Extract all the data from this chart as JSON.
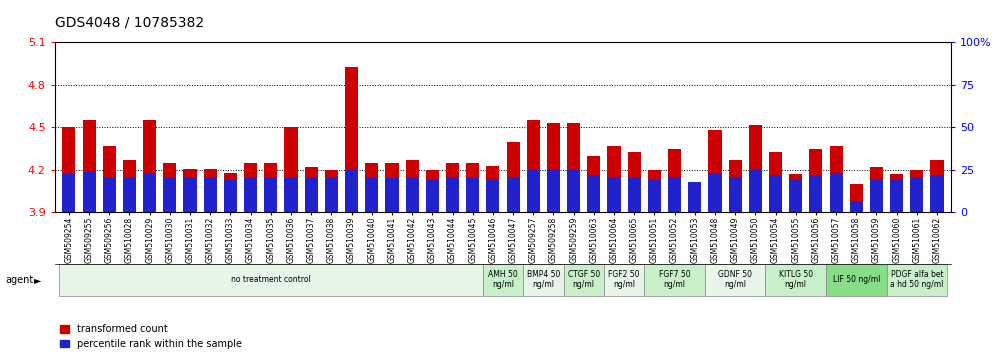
{
  "title": "GDS4048 / 10785382",
  "samples": [
    "GSM509254",
    "GSM509255",
    "GSM509256",
    "GSM510028",
    "GSM510029",
    "GSM510030",
    "GSM510031",
    "GSM510032",
    "GSM510033",
    "GSM510034",
    "GSM510035",
    "GSM510036",
    "GSM510037",
    "GSM510038",
    "GSM510039",
    "GSM510040",
    "GSM510041",
    "GSM510042",
    "GSM510043",
    "GSM510044",
    "GSM510045",
    "GSM510046",
    "GSM510047",
    "GSM509257",
    "GSM509258",
    "GSM509259",
    "GSM510063",
    "GSM510064",
    "GSM510065",
    "GSM510051",
    "GSM510052",
    "GSM510053",
    "GSM510048",
    "GSM510049",
    "GSM510050",
    "GSM510054",
    "GSM510055",
    "GSM510056",
    "GSM510057",
    "GSM510058",
    "GSM510059",
    "GSM510060",
    "GSM510061",
    "GSM510062"
  ],
  "red_values": [
    4.5,
    4.55,
    4.37,
    4.27,
    4.55,
    4.25,
    4.21,
    4.21,
    4.18,
    4.25,
    4.25,
    4.5,
    4.22,
    4.2,
    4.93,
    4.25,
    4.25,
    4.27,
    4.2,
    4.25,
    4.25,
    4.23,
    4.4,
    4.55,
    4.53,
    4.53,
    4.3,
    4.37,
    4.33,
    4.2,
    4.35,
    4.1,
    4.48,
    4.27,
    4.52,
    4.33,
    4.17,
    4.35,
    4.37,
    4.1,
    4.22,
    4.17,
    4.2,
    4.27
  ],
  "blue_values": [
    23,
    24,
    20,
    20,
    23,
    20,
    20,
    20,
    19,
    20,
    20,
    20,
    20,
    20,
    25,
    20,
    20,
    20,
    19,
    20,
    20,
    19,
    21,
    25,
    25,
    25,
    22,
    21,
    20,
    19,
    21,
    18,
    23,
    21,
    25,
    22,
    19,
    22,
    23,
    7,
    19,
    19,
    20,
    22
  ],
  "agent_groups": [
    {
      "label": "no treatment control",
      "start": 0,
      "end": 21,
      "color": "#e8f5e9",
      "bright": false
    },
    {
      "label": "AMH 50\nng/ml",
      "start": 21,
      "end": 23,
      "color": "#c8f0c8",
      "bright": true
    },
    {
      "label": "BMP4 50\nng/ml",
      "start": 23,
      "end": 25,
      "color": "#e8f5e9",
      "bright": false
    },
    {
      "label": "CTGF 50\nng/ml",
      "start": 25,
      "end": 27,
      "color": "#c8f0c8",
      "bright": true
    },
    {
      "label": "FGF2 50\nng/ml",
      "start": 27,
      "end": 29,
      "color": "#e8f5e9",
      "bright": false
    },
    {
      "label": "FGF7 50\nng/ml",
      "start": 29,
      "end": 32,
      "color": "#c8f0c8",
      "bright": true
    },
    {
      "label": "GDNF 50\nng/ml",
      "start": 32,
      "end": 35,
      "color": "#e8f5e9",
      "bright": false
    },
    {
      "label": "KITLG 50\nng/ml",
      "start": 35,
      "end": 38,
      "color": "#c8f0c8",
      "bright": true
    },
    {
      "label": "LIF 50 ng/ml",
      "start": 38,
      "end": 41,
      "color": "#88dd88",
      "bright": true
    },
    {
      "label": "PDGF alfa bet\na hd 50 ng/ml",
      "start": 41,
      "end": 44,
      "color": "#c8f0c8",
      "bright": true
    }
  ],
  "ylim_left": [
    3.9,
    5.1
  ],
  "ylim_right": [
    0,
    100
  ],
  "yticks_left": [
    3.9,
    4.2,
    4.5,
    4.8,
    5.1
  ],
  "yticks_right": [
    0,
    25,
    50,
    75,
    100
  ],
  "grid_values": [
    4.2,
    4.5,
    4.8
  ],
  "bar_color": "#cc0000",
  "blue_color": "#2222cc",
  "background_color": "#ffffff"
}
